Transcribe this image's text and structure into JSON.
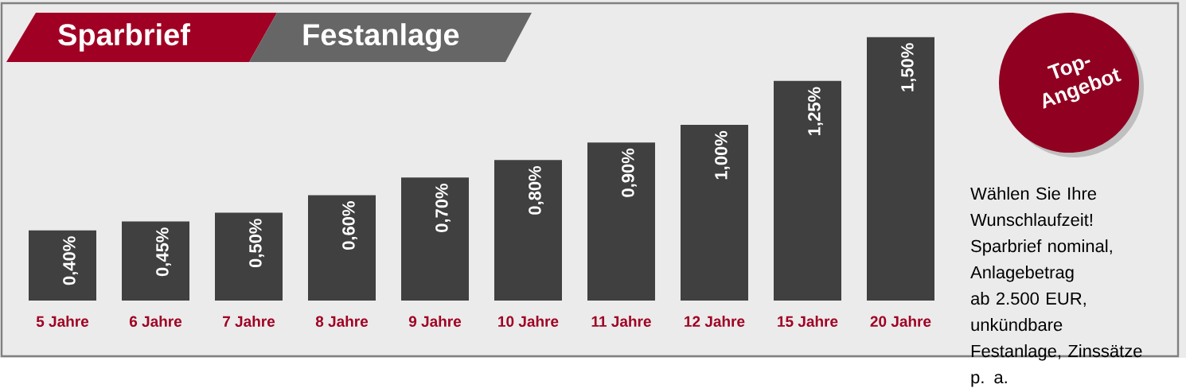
{
  "chart_data": {
    "type": "bar",
    "title": "Sparbrief",
    "subtitle": "Festanlage",
    "categories": [
      "5 Jahre",
      "6 Jahre",
      "7 Jahre",
      "8 Jahre",
      "9 Jahre",
      "10 Jahre",
      "11 Jahre",
      "12 Jahre",
      "15 Jahre",
      "20 Jahre"
    ],
    "values": [
      0.4,
      0.45,
      0.5,
      0.6,
      0.7,
      0.8,
      0.9,
      1.0,
      1.25,
      1.5
    ],
    "value_labels": [
      "0,40%",
      "0,45%",
      "0,50%",
      "0,60%",
      "0,70%",
      "0,80%",
      "0,90%",
      "1,00%",
      "1,25%",
      "1,50%"
    ],
    "color": "#404040",
    "annotations": [
      "Top-Angebot",
      "Wählen Sie Ihre Wunschlaufzeit! Sparbrief nominal, Anlagebetrag ab 2.500 EUR, unkündbare Festanlage, Zinssätze p. a."
    ]
  }
}
